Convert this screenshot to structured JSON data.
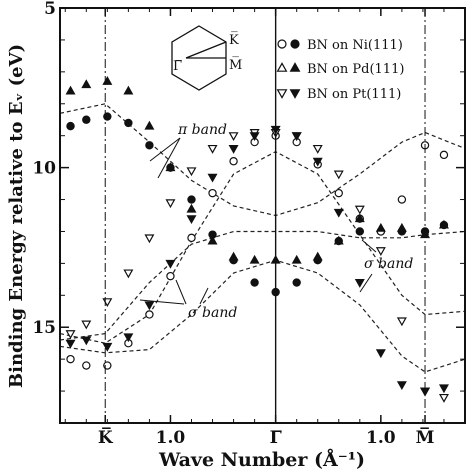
{
  "chart_data": {
    "type": "scatter",
    "title": "",
    "xlabel": "Wave Number (Å⁻¹)",
    "ylabel": "Binding Energy relative to Eᵥ (eV)",
    "ylim": [
      5,
      18
    ],
    "y_inverted": true,
    "xlim": [
      -2.05,
      1.8
    ],
    "y_ticks": [
      5,
      10,
      15
    ],
    "x_ticks": [
      {
        "value": -1.62,
        "label": "K̅"
      },
      {
        "value": -1.0,
        "label": "1.0"
      },
      {
        "value": 0.0,
        "label": "Γ̅"
      },
      {
        "value": 1.0,
        "label": "1.0"
      },
      {
        "value": 1.42,
        "label": "M̅"
      }
    ],
    "grid": false,
    "legend_position": "top-right",
    "legend": [
      {
        "label": "BN on Ni(111)",
        "markers": [
          "open-circle",
          "filled-circle"
        ]
      },
      {
        "label": "BN on Pd(111)",
        "markers": [
          "open-triangle-up",
          "filled-triangle-up"
        ]
      },
      {
        "label": "BN on Pt(111)",
        "markers": [
          "open-triangle-down",
          "filled-triangle-down"
        ]
      }
    ],
    "inset_labels": {
      "gamma": "Γ̅",
      "k": "K̅",
      "m": "M̅"
    },
    "annotations": [
      {
        "text": "π band"
      },
      {
        "text": "σ band"
      },
      {
        "text": "σ band"
      }
    ],
    "series": [
      {
        "marker": "filled-circle",
        "band": "pi-upper",
        "x": [
          -1.95,
          -1.8,
          -1.6,
          -1.4,
          -1.2,
          -1.0,
          -0.8,
          -0.6,
          -0.4,
          -0.2,
          0.0,
          0.2,
          0.4,
          0.6,
          0.8,
          1.0,
          1.2,
          1.42,
          1.6
        ],
        "y": [
          8.7,
          8.5,
          8.4,
          8.6,
          9.3,
          10.0,
          11.0,
          12.1,
          12.9,
          13.6,
          13.9,
          13.6,
          12.9,
          12.3,
          12.0,
          12.0,
          12.0,
          12.0,
          11.8
        ]
      },
      {
        "marker": "open-circle",
        "band": "pi-lower",
        "x": [
          -1.95,
          -1.8,
          -1.6,
          -1.4,
          -1.2,
          -1.0,
          -0.8,
          -0.6,
          -0.4,
          -0.2,
          0.0,
          0.2,
          0.4,
          0.6,
          0.8,
          1.0,
          1.2,
          1.42,
          1.6
        ],
        "y": [
          16.0,
          16.2,
          16.2,
          15.5,
          14.6,
          13.4,
          12.2,
          10.8,
          9.8,
          9.2,
          9.0,
          9.2,
          9.9,
          10.8,
          11.6,
          12.0,
          11.0,
          9.3,
          9.6
        ]
      },
      {
        "marker": "filled-triangle-up",
        "band": "pi-mid",
        "x": [
          -1.95,
          -1.8,
          -1.6,
          -1.4,
          -1.2,
          -1.0,
          -0.8,
          -0.6,
          -0.4,
          -0.2,
          0.0,
          0.2,
          0.4,
          0.6,
          0.8,
          1.0,
          1.2,
          1.42,
          1.6
        ],
        "y": [
          7.6,
          7.4,
          7.3,
          7.6,
          8.7,
          10.0,
          11.3,
          12.3,
          12.8,
          12.9,
          12.9,
          12.9,
          12.8,
          12.3,
          11.6,
          11.9,
          11.9,
          12.1,
          11.8
        ]
      },
      {
        "marker": "open-triangle-down",
        "band": "sigma-upper",
        "x": [
          -1.95,
          -1.8,
          -1.6,
          -1.4,
          -1.2,
          -1.0,
          -0.8,
          -0.6,
          -0.4,
          -0.2,
          0.0,
          0.2,
          0.4,
          0.6,
          0.8,
          1.0,
          1.2,
          1.42,
          1.6
        ],
        "y": [
          15.2,
          14.9,
          14.2,
          13.3,
          12.2,
          11.1,
          10.1,
          9.4,
          9.0,
          8.9,
          8.9,
          9.0,
          9.4,
          10.2,
          11.3,
          12.6,
          14.8,
          17.0,
          17.2
        ]
      },
      {
        "marker": "filled-triangle-down",
        "band": "sigma-lower",
        "x": [
          -1.95,
          -1.8,
          -1.6,
          -1.4,
          -1.2,
          -1.0,
          -0.8,
          -0.6,
          -0.4,
          -0.2,
          0.0,
          0.2,
          0.4,
          0.6,
          0.8,
          1.0,
          1.2,
          1.42,
          1.6
        ],
        "y": [
          15.5,
          15.4,
          15.6,
          15.3,
          14.3,
          13.0,
          11.6,
          10.3,
          9.4,
          9.0,
          8.8,
          9.0,
          9.8,
          11.4,
          13.6,
          15.8,
          16.8,
          17.0,
          16.9
        ]
      }
    ],
    "theory_curves": [
      {
        "style": "dashed",
        "x": [
          -2.05,
          -1.62,
          -1.2,
          -0.8,
          -0.4,
          0.0,
          0.4,
          0.8,
          1.2,
          1.42,
          1.8
        ],
        "y": [
          8.3,
          8.0,
          9.2,
          10.4,
          11.2,
          11.5,
          11.1,
          10.2,
          9.2,
          8.9,
          9.4
        ]
      },
      {
        "style": "dashed",
        "x": [
          -2.05,
          -1.62,
          -1.2,
          -0.8,
          -0.4,
          0.0,
          0.4,
          0.8,
          1.2,
          1.42,
          1.8
        ],
        "y": [
          15.2,
          15.5,
          14.6,
          12.3,
          10.2,
          9.5,
          10.2,
          12.1,
          14.0,
          14.6,
          14.5
        ]
      },
      {
        "style": "dashed",
        "x": [
          -2.05,
          -1.62,
          -1.2,
          -0.8,
          -0.4,
          0.0,
          0.4,
          0.8,
          1.2,
          1.42,
          1.8
        ],
        "y": [
          15.4,
          15.2,
          13.6,
          12.4,
          12.0,
          12.0,
          12.0,
          12.2,
          12.2,
          12.1,
          12.0
        ]
      },
      {
        "style": "dashed",
        "x": [
          -2.05,
          -1.62,
          -1.2,
          -0.8,
          -0.4,
          0.0,
          0.4,
          0.8,
          1.2,
          1.42,
          1.8
        ],
        "y": [
          15.6,
          15.8,
          15.7,
          14.6,
          13.3,
          12.9,
          13.3,
          14.3,
          15.9,
          16.4,
          16.0
        ]
      }
    ]
  }
}
